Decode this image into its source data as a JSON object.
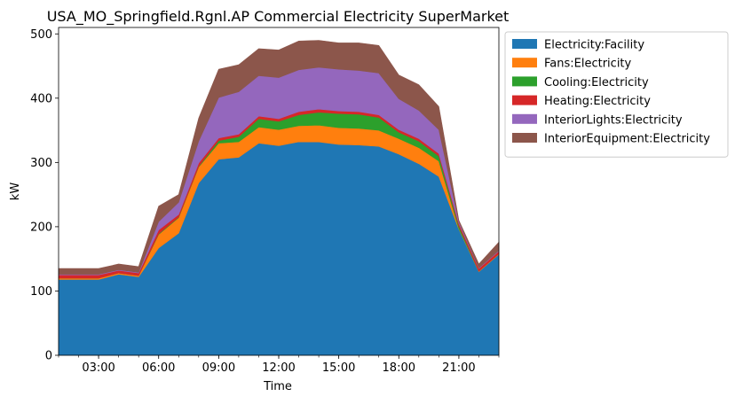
{
  "chart_data": {
    "type": "area",
    "stacked": true,
    "title": "USA_MO_Springfield.Rgnl.AP Commercial Electricity SuperMarket",
    "xlabel": "Time",
    "ylabel": "kW",
    "x": [
      "01:00",
      "02:00",
      "03:00",
      "04:00",
      "05:00",
      "06:00",
      "07:00",
      "08:00",
      "09:00",
      "10:00",
      "11:00",
      "12:00",
      "13:00",
      "14:00",
      "15:00",
      "16:00",
      "17:00",
      "18:00",
      "19:00",
      "20:00",
      "21:00",
      "22:00",
      "23:00"
    ],
    "xlim": [
      "01:00",
      "23:00"
    ],
    "xticks": [
      "03:00",
      "06:00",
      "09:00",
      "12:00",
      "15:00",
      "18:00",
      "21:00"
    ],
    "ylim": [
      0,
      510
    ],
    "yticks": [
      0,
      100,
      200,
      300,
      400,
      500
    ],
    "legend_position": "upper-right-outside",
    "grid": false,
    "series": [
      {
        "name": "Electricity:Facility",
        "color": "#1f77b4",
        "values": [
          118,
          118,
          118,
          126,
          122,
          167,
          190,
          268,
          305,
          308,
          330,
          326,
          332,
          332,
          328,
          327,
          325,
          313,
          298,
          278,
          196,
          130,
          157
        ]
      },
      {
        "name": "Fans:Electricity",
        "color": "#ff7f0e",
        "values": [
          2,
          2,
          2,
          2,
          2,
          21,
          24,
          25,
          25,
          24,
          25,
          25,
          25,
          26,
          26,
          26,
          25,
          24,
          25,
          24,
          1,
          1,
          1
        ]
      },
      {
        "name": "Cooling:Electricity",
        "color": "#2ca02c",
        "values": [
          0,
          0,
          0,
          0,
          0,
          1,
          1,
          1,
          4,
          8,
          13,
          13,
          17,
          20,
          22,
          22,
          20,
          10,
          10,
          8,
          4,
          0,
          0
        ]
      },
      {
        "name": "Heating:Electricity",
        "color": "#d62728",
        "values": [
          5,
          5,
          5,
          4,
          4,
          6,
          4,
          5,
          4,
          4,
          4,
          4,
          5,
          5,
          4,
          4,
          4,
          4,
          4,
          4,
          4,
          4,
          4
        ]
      },
      {
        "name": "InteriorLights:Electricity",
        "color": "#9467bd",
        "values": [
          1,
          1,
          1,
          1,
          1,
          13,
          19,
          34,
          63,
          66,
          63,
          64,
          65,
          65,
          65,
          64,
          65,
          48,
          44,
          37,
          3,
          1,
          1
        ]
      },
      {
        "name": "InteriorEquipment:Electricity",
        "color": "#8c564b",
        "values": [
          9,
          9,
          9,
          9,
          9,
          24,
          12,
          36,
          44,
          42,
          42,
          43,
          45,
          42,
          41,
          43,
          43,
          37,
          40,
          36,
          2,
          6,
          13
        ]
      }
    ]
  }
}
